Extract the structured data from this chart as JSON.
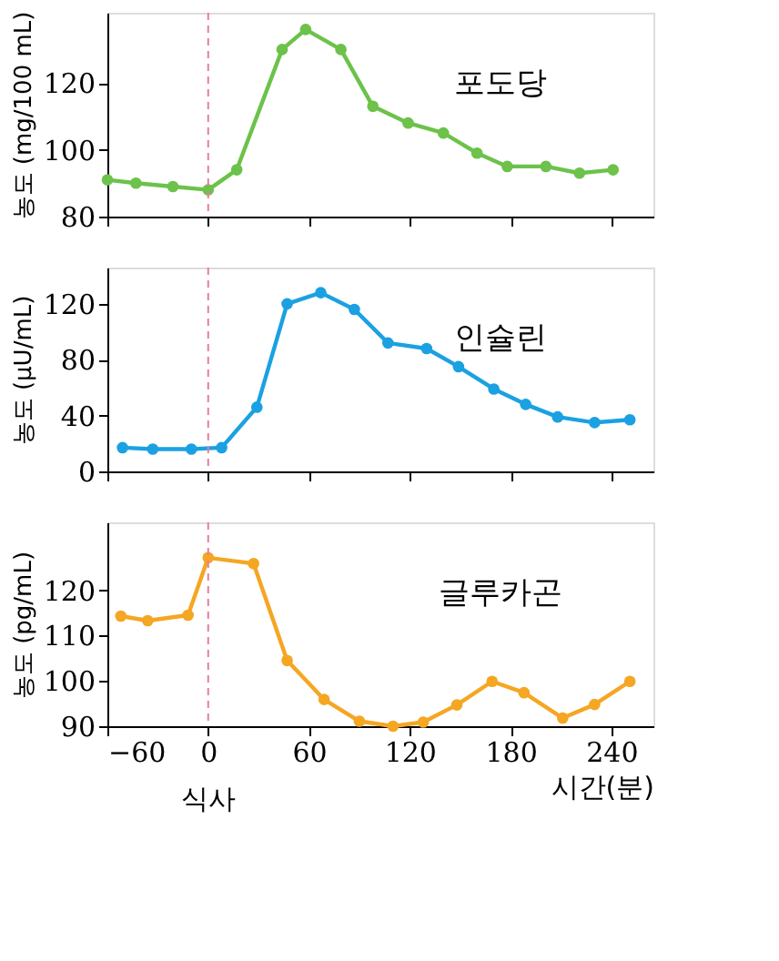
{
  "chart_data": [
    {
      "type": "line",
      "ylabel": "농도 (mg/100 mL)",
      "xlim": [
        -60,
        265
      ],
      "xticks": [
        -60,
        0,
        60,
        120,
        180,
        240
      ],
      "ylim": [
        80,
        141
      ],
      "yticks": [
        80,
        100,
        120
      ],
      "tick_labels": "y",
      "grid": false,
      "marker": "circle",
      "line_style": "solid",
      "ref_lines": [
        {
          "axis": "x",
          "value": 0,
          "color": "#e87ca0",
          "line_style": "dashed"
        }
      ],
      "series": [
        {
          "name": "포도당",
          "color": "#6cc24a",
          "x": [
            -60,
            -43,
            -21,
            0,
            17,
            44,
            58,
            79,
            98,
            119,
            140,
            160,
            178,
            201,
            221,
            241
          ],
          "values": [
            91,
            90,
            89,
            88,
            94,
            130,
            136,
            130,
            113,
            108,
            105,
            99,
            95,
            95,
            93,
            94
          ]
        }
      ]
    },
    {
      "type": "line",
      "ylabel": "농도 (μU/mL)",
      "xlim": [
        -60,
        265
      ],
      "xticks": [
        -60,
        0,
        60,
        120,
        180,
        240
      ],
      "ylim": [
        0,
        146
      ],
      "yticks": [
        0,
        40,
        80,
        120
      ],
      "tick_labels": "y",
      "grid": false,
      "marker": "circle",
      "line_style": "solid",
      "ref_lines": [
        {
          "axis": "x",
          "value": 0,
          "color": "#e87ca0",
          "line_style": "dashed"
        }
      ],
      "series": [
        {
          "name": "인슐린",
          "color": "#1ba1e2",
          "x": [
            -51,
            -33,
            -10,
            8,
            29,
            47,
            67,
            87,
            107,
            130,
            149,
            170,
            189,
            208,
            230,
            251
          ],
          "values": [
            17,
            16,
            16,
            17,
            46,
            120,
            128,
            116,
            92,
            88,
            75,
            59,
            48,
            39,
            35,
            37
          ]
        }
      ]
    },
    {
      "type": "line",
      "ylabel": "농도 (pg/mL)",
      "xlabel": "시간(분)",
      "xlim": [
        -60,
        265
      ],
      "xticks": [
        -60,
        0,
        60,
        120,
        180,
        240
      ],
      "ylim": [
        90,
        135
      ],
      "yticks": [
        90,
        100,
        110,
        120
      ],
      "grid": false,
      "marker": "circle",
      "line_style": "solid",
      "ref_lines": [
        {
          "axis": "x",
          "value": 0,
          "color": "#e87ca0",
          "line_style": "dashed"
        }
      ],
      "annotations": [
        "식사"
      ],
      "series": [
        {
          "name": "글루카곤",
          "color": "#f5a623",
          "x": [
            -52,
            -36,
            -12,
            0,
            27,
            47,
            69,
            90,
            110,
            128,
            148,
            169,
            188,
            211,
            230,
            251
          ],
          "values": [
            114.3,
            113.3,
            114.5,
            127.2,
            125.9,
            104.5,
            95.9,
            91.1,
            90,
            90.9,
            94.7,
            99.9,
            97.4,
            91.8,
            94.8,
            99.9
          ]
        }
      ]
    }
  ]
}
